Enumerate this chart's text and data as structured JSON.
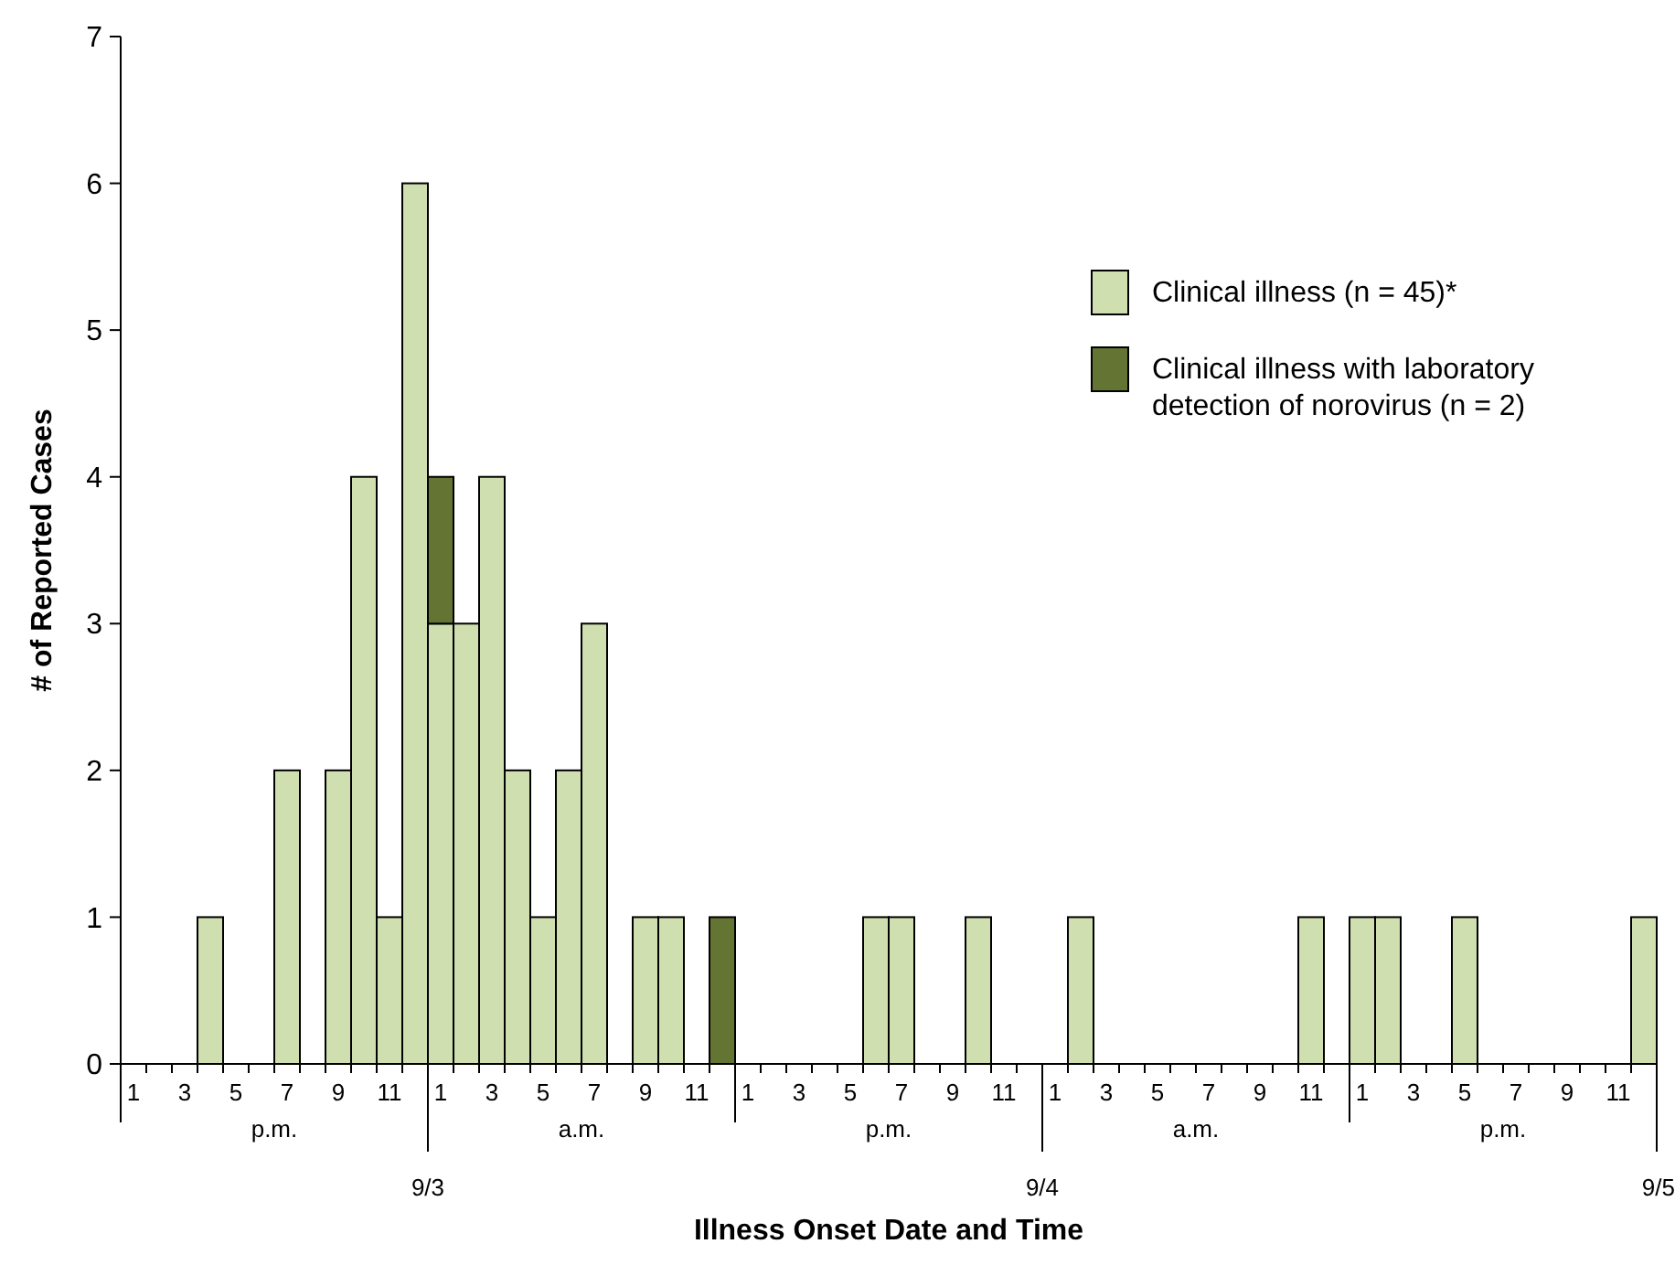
{
  "chart_data": {
    "type": "bar",
    "stacked": true,
    "xlabel": "Illness Onset Date and Time",
    "ylabel": "# of Reported Cases",
    "categories": [
      "1",
      null,
      "3",
      null,
      "5",
      null,
      "7",
      null,
      "9",
      null,
      "11",
      null,
      "1",
      null,
      "3",
      null,
      "5",
      null,
      "7",
      null,
      "9",
      null,
      "11",
      null,
      "1",
      null,
      "3",
      null,
      "5",
      null,
      "7",
      null,
      "9",
      null,
      "11",
      null,
      "1",
      null,
      "3",
      null,
      "5",
      null,
      "7",
      null,
      "9",
      null,
      "11",
      null,
      "1",
      null,
      "3",
      null,
      "5",
      null,
      "7",
      null,
      "9",
      null,
      "11",
      null
    ],
    "series": [
      {
        "name": "Clinical illness (n = 45)*",
        "color": "#d0dfb0",
        "values": [
          null,
          null,
          null,
          1,
          null,
          null,
          2,
          null,
          2,
          4,
          1,
          6,
          3,
          3,
          4,
          2,
          1,
          2,
          3,
          null,
          1,
          1,
          null,
          null,
          null,
          null,
          null,
          null,
          null,
          1,
          1,
          null,
          null,
          1,
          null,
          null,
          null,
          1,
          null,
          null,
          null,
          null,
          null,
          null,
          null,
          null,
          1,
          null,
          1,
          1,
          null,
          null,
          1,
          null,
          null,
          null,
          null,
          null,
          null,
          1
        ]
      },
      {
        "name": "Clinical illness with laboratory detection of norovirus (n = 2)",
        "color": "#647433",
        "values": [
          null,
          null,
          null,
          null,
          null,
          null,
          null,
          null,
          null,
          null,
          null,
          null,
          1,
          null,
          null,
          null,
          null,
          null,
          null,
          null,
          null,
          null,
          null,
          1,
          null,
          null,
          null,
          null,
          null,
          null,
          null,
          null,
          null,
          null,
          null,
          null,
          null,
          null,
          null,
          null,
          null,
          null,
          null,
          null,
          null,
          null,
          null,
          null,
          null,
          null,
          null,
          null,
          null,
          null,
          null,
          null,
          null,
          null,
          null,
          null
        ]
      }
    ],
    "ylim": [
      0,
      7
    ],
    "yticks": [
      0,
      1,
      2,
      3,
      4,
      5,
      6,
      7
    ],
    "grid": false,
    "legend": "top right",
    "annotations": [
      "p.m.",
      "a.m.",
      "p.m.",
      "a.m.",
      "p.m.",
      "9/3",
      "9/4",
      "9/5"
    ]
  }
}
